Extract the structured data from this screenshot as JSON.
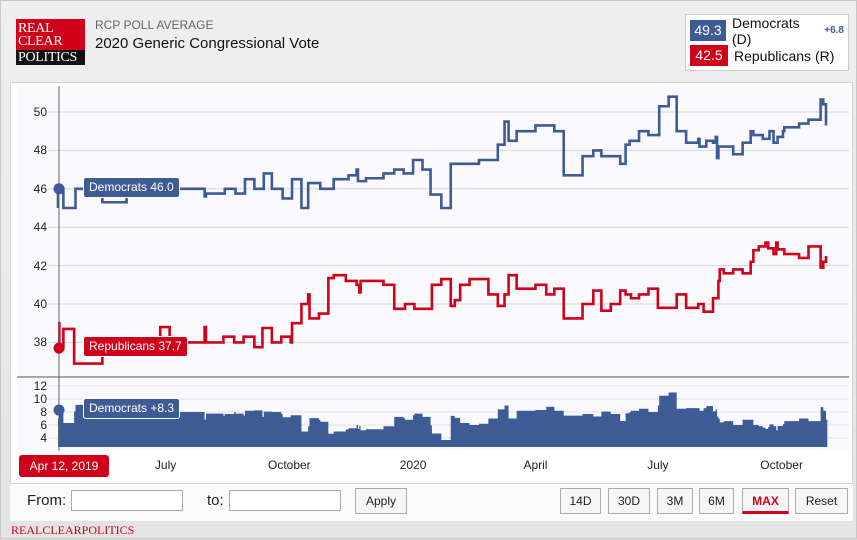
{
  "header": {
    "logo_text": [
      "REAL",
      "CLEAR",
      "POLITICS"
    ],
    "subtitle": "RCP POLL AVERAGE",
    "title": "2020 Generic Congressional Vote"
  },
  "legend": {
    "dem_value": "49.3",
    "dem_label": "Democrats (D)",
    "spread": "+6.8",
    "rep_value": "42.5",
    "rep_label": "Republicans (R)"
  },
  "colors": {
    "dem": "#3e5b96",
    "rep": "#d0021b"
  },
  "tooltips": {
    "dem": "Democrats 46.0",
    "rep": "Republicans 37.7",
    "spread": "Democrats +8.3",
    "date": "Apr 12, 2019"
  },
  "controls": {
    "from_label": "From:",
    "from_value": "",
    "to_label": "to:",
    "to_value": "",
    "apply": "Apply",
    "ranges": [
      "14D",
      "30D",
      "3M",
      "6M",
      "MAX",
      "Reset"
    ],
    "active_range": "MAX"
  },
  "footer": "REALCLEARPOLITICS",
  "chart_data": {
    "type": "line",
    "x_unit": "days since Apr 12, 2019",
    "x_ticks": [
      {
        "day": 80,
        "label": "July"
      },
      {
        "day": 172,
        "label": "October"
      },
      {
        "day": 264,
        "label": "2020"
      },
      {
        "day": 355,
        "label": "April"
      },
      {
        "day": 446,
        "label": "July"
      },
      {
        "day": 538,
        "label": "October"
      }
    ],
    "y_ticks": [
      38,
      40,
      42,
      44,
      46,
      48,
      50
    ],
    "ylim": [
      36.5,
      51.3
    ],
    "spread_ticks": [
      4,
      6,
      8,
      10,
      12
    ],
    "spread_ylim": [
      2.8,
      12
    ],
    "series": [
      {
        "name": "Democrats",
        "points": [
          [
            0,
            45.0
          ],
          [
            0,
            46.0
          ],
          [
            4,
            45.0
          ],
          [
            13,
            46.0
          ],
          [
            33,
            45.3
          ],
          [
            48,
            45.3
          ],
          [
            51,
            46.0
          ],
          [
            109,
            45.6
          ],
          [
            110,
            45.75
          ],
          [
            124,
            46.0
          ],
          [
            132,
            45.75
          ],
          [
            139,
            46.5
          ],
          [
            146,
            46.0
          ],
          [
            153,
            46.8
          ],
          [
            159,
            46.0
          ],
          [
            167,
            45.5
          ],
          [
            174,
            46.5
          ],
          [
            181,
            45.0
          ],
          [
            186,
            46.3
          ],
          [
            195,
            46.0
          ],
          [
            205,
            46.5
          ],
          [
            216,
            46.7
          ],
          [
            222,
            47.0
          ],
          [
            223,
            46.4
          ],
          [
            229,
            46.55
          ],
          [
            242,
            46.8
          ],
          [
            250,
            47.0
          ],
          [
            257,
            46.8
          ],
          [
            264,
            47.5
          ],
          [
            271,
            47.0
          ],
          [
            277,
            45.7
          ],
          [
            285,
            45.0
          ],
          [
            292,
            47.3
          ],
          [
            313,
            47.5
          ],
          [
            327,
            48.3
          ],
          [
            332,
            49.5
          ],
          [
            335,
            48.5
          ],
          [
            341,
            49.0
          ],
          [
            355,
            49.3
          ],
          [
            369,
            49.0
          ],
          [
            376,
            46.7
          ],
          [
            390,
            47.7
          ],
          [
            398,
            48.0
          ],
          [
            404,
            47.7
          ],
          [
            418,
            47.3
          ],
          [
            422,
            48.3
          ],
          [
            425,
            48.5
          ],
          [
            432,
            49.0
          ],
          [
            439,
            48.8
          ],
          [
            447,
            50.3
          ],
          [
            454,
            50.8
          ],
          [
            460,
            49.0
          ],
          [
            467,
            48.4
          ],
          [
            476,
            48.6
          ],
          [
            477,
            48.2
          ],
          [
            482,
            48.5
          ],
          [
            487,
            48.4
          ],
          [
            489,
            48.7
          ],
          [
            490,
            47.6
          ],
          [
            491,
            48.2
          ],
          [
            502,
            47.8
          ],
          [
            509,
            48.4
          ],
          [
            515,
            49.0
          ],
          [
            517,
            48.8
          ],
          [
            524,
            48.6
          ],
          [
            529,
            49.0
          ],
          [
            532,
            48.4
          ],
          [
            535,
            48.7
          ],
          [
            539,
            49.0
          ],
          [
            540,
            49.2
          ],
          [
            551,
            49.4
          ],
          [
            558,
            49.6
          ],
          [
            567,
            50.65
          ],
          [
            569,
            50.4
          ],
          [
            571,
            49.3
          ]
        ]
      },
      {
        "name": "Republicans",
        "points": [
          [
            0,
            39.0
          ],
          [
            1,
            37.7
          ],
          [
            4,
            38.7
          ],
          [
            12,
            36.9
          ],
          [
            33,
            37.9
          ],
          [
            60,
            38.2
          ],
          [
            72,
            38.0
          ],
          [
            76,
            38.8
          ],
          [
            83,
            38.0
          ],
          [
            109,
            38.8
          ],
          [
            110,
            38.0
          ],
          [
            123,
            38.3
          ],
          [
            131,
            38.0
          ],
          [
            138,
            38.3
          ],
          [
            146,
            37.75
          ],
          [
            152,
            38.75
          ],
          [
            159,
            38.0
          ],
          [
            166,
            38.3
          ],
          [
            173,
            38.0
          ],
          [
            174,
            39.0
          ],
          [
            181,
            40.0
          ],
          [
            186,
            40.5
          ],
          [
            187,
            39.25
          ],
          [
            194,
            39.5
          ],
          [
            201,
            41.35
          ],
          [
            205,
            41.5
          ],
          [
            214,
            41.2
          ],
          [
            222,
            41.0
          ],
          [
            224,
            40.6
          ],
          [
            225,
            41.2
          ],
          [
            242,
            41.0
          ],
          [
            250,
            39.75
          ],
          [
            258,
            40.0
          ],
          [
            265,
            39.75
          ],
          [
            278,
            41.0
          ],
          [
            285,
            41.3
          ],
          [
            292,
            39.9
          ],
          [
            295,
            40.2
          ],
          [
            299,
            41.0
          ],
          [
            306,
            41.3
          ],
          [
            320,
            40.5
          ],
          [
            327,
            39.9
          ],
          [
            332,
            40.5
          ],
          [
            335,
            41.5
          ],
          [
            341,
            40.8
          ],
          [
            355,
            41.0
          ],
          [
            363,
            40.5
          ],
          [
            369,
            40.8
          ],
          [
            376,
            39.25
          ],
          [
            390,
            40.0
          ],
          [
            398,
            40.7
          ],
          [
            404,
            39.65
          ],
          [
            411,
            40.0
          ],
          [
            418,
            40.7
          ],
          [
            422,
            40.5
          ],
          [
            426,
            40.3
          ],
          [
            432,
            40.5
          ],
          [
            439,
            40.8
          ],
          [
            446,
            39.8
          ],
          [
            460,
            40.5
          ],
          [
            467,
            39.8
          ],
          [
            476,
            40.0
          ],
          [
            480,
            39.6
          ],
          [
            487,
            40.3
          ],
          [
            491,
            41.2
          ],
          [
            492,
            41.8
          ],
          [
            495,
            41.6
          ],
          [
            502,
            41.8
          ],
          [
            509,
            41.6
          ],
          [
            515,
            42.2
          ],
          [
            517,
            42.8
          ],
          [
            521,
            43.0
          ],
          [
            526,
            43.2
          ],
          [
            528,
            42.9
          ],
          [
            532,
            42.6
          ],
          [
            534,
            43.2
          ],
          [
            535,
            42.85
          ],
          [
            540,
            42.6
          ],
          [
            551,
            42.4
          ],
          [
            558,
            43.0
          ],
          [
            567,
            41.9
          ],
          [
            569,
            42.2
          ],
          [
            571,
            42.5
          ]
        ]
      }
    ]
  }
}
